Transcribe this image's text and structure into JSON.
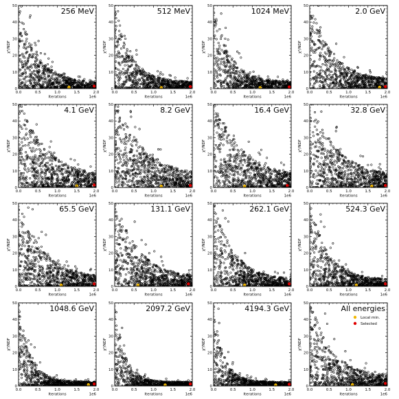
{
  "figure": {
    "xlabel": "Iterations",
    "ylabel": "χ²/NDF",
    "x_offset_label": "1e6",
    "legend": [
      "Local min.",
      "Selected"
    ]
  },
  "colors": {
    "points": "#000000",
    "local_min": "#f2b700",
    "selected": "#e00000",
    "axes": "#000000"
  },
  "chart_data": [
    {
      "type": "scatter",
      "title": "256 MeV",
      "xlim": [
        0,
        2.0
      ],
      "ylim": [
        0,
        50
      ],
      "xticks": [
        "0.0",
        "0.5",
        "1.0",
        "1.5",
        "2.0"
      ],
      "yticks": [
        "0",
        "10",
        "20",
        "30",
        "40",
        "50"
      ],
      "decay": 0.45,
      "floor": 4,
      "local_min": [
        1.3,
        0.8
      ],
      "selected": [
        1.95,
        1.5
      ]
    },
    {
      "type": "scatter",
      "title": "512 MeV",
      "xlim": [
        0,
        2.0
      ],
      "ylim": [
        0,
        50
      ],
      "xticks": [
        "0.0",
        "0.5",
        "1.0",
        "1.5",
        "2.0"
      ],
      "yticks": [
        "0",
        "10",
        "20",
        "30",
        "40",
        "50"
      ],
      "decay": 0.4,
      "floor": 4,
      "local_min": [
        1.2,
        0.6
      ],
      "selected": [
        1.95,
        1.2
      ]
    },
    {
      "type": "scatter",
      "title": "1024 MeV",
      "xlim": [
        0,
        2.0
      ],
      "ylim": [
        0,
        50
      ],
      "xticks": [
        "0.0",
        "0.5",
        "1.0",
        "1.5",
        "2.0"
      ],
      "yticks": [
        "0",
        "10",
        "20",
        "30",
        "40",
        "50"
      ],
      "decay": 0.4,
      "floor": 4,
      "local_min": [
        1.2,
        0.6
      ],
      "selected": [
        1.95,
        1.0
      ]
    },
    {
      "type": "scatter",
      "title": "2.0 GeV",
      "xlim": [
        0,
        2.0
      ],
      "ylim": [
        0,
        50
      ],
      "xticks": [
        "0.0",
        "0.5",
        "1.0",
        "1.5",
        "2.0"
      ],
      "yticks": [
        "0",
        "10",
        "20",
        "30",
        "40",
        "50"
      ],
      "decay": 0.55,
      "floor": 5,
      "local_min": [
        1.8,
        0.8
      ],
      "selected": [
        1.95,
        1.2
      ]
    },
    {
      "type": "scatter",
      "title": "4.1 GeV",
      "xlim": [
        0,
        2.0
      ],
      "ylim": [
        0,
        50
      ],
      "xticks": [
        "0.0",
        "0.5",
        "1.0",
        "1.5",
        "2.0"
      ],
      "yticks": [
        "0",
        "10",
        "20",
        "30",
        "40",
        "50"
      ],
      "decay": 0.7,
      "floor": 6,
      "local_min": [
        1.5,
        1.0
      ],
      "selected": [
        1.95,
        1.5
      ]
    },
    {
      "type": "scatter",
      "title": "8.2 GeV",
      "xlim": [
        0,
        2.0
      ],
      "ylim": [
        0,
        50
      ],
      "xticks": [
        "0.0",
        "0.5",
        "1.0",
        "1.5",
        "2.0"
      ],
      "yticks": [
        "0",
        "10",
        "20",
        "30",
        "40",
        "50"
      ],
      "decay": 0.75,
      "floor": 6,
      "local_min": [
        1.2,
        0.8
      ],
      "selected": [
        1.95,
        1.2
      ]
    },
    {
      "type": "scatter",
      "title": "16.4 GeV",
      "xlim": [
        0,
        2.0
      ],
      "ylim": [
        0,
        50
      ],
      "xticks": [
        "0.0",
        "0.5",
        "1.0",
        "1.5",
        "2.0"
      ],
      "yticks": [
        "0",
        "10",
        "20",
        "30",
        "40",
        "50"
      ],
      "decay": 0.7,
      "floor": 6,
      "local_min": [
        0.8,
        0.8
      ],
      "selected": [
        1.9,
        1.2
      ]
    },
    {
      "type": "scatter",
      "title": "32.8 GeV",
      "xlim": [
        0,
        2.0
      ],
      "ylim": [
        0,
        50
      ],
      "xticks": [
        "0.0",
        "0.5",
        "1.0",
        "1.5",
        "2.0"
      ],
      "yticks": [
        "0",
        "10",
        "20",
        "30",
        "40",
        "50"
      ],
      "decay": 0.7,
      "floor": 6,
      "local_min": [
        1.6,
        0.8
      ],
      "selected": [
        1.95,
        1.2
      ]
    },
    {
      "type": "scatter",
      "title": "65.5 GeV",
      "xlim": [
        0,
        2.0
      ],
      "ylim": [
        0,
        50
      ],
      "xticks": [
        "0.0",
        "0.5",
        "1.0",
        "1.5",
        "2.0"
      ],
      "yticks": [
        "0",
        "10",
        "20",
        "30",
        "40",
        "50"
      ],
      "decay": 0.6,
      "floor": 5,
      "local_min": [
        1.1,
        0.8
      ],
      "selected": [
        1.95,
        1.5
      ]
    },
    {
      "type": "scatter",
      "title": "131.1 GeV",
      "xlim": [
        0,
        2.0
      ],
      "ylim": [
        0,
        50
      ],
      "xticks": [
        "0.0",
        "0.5",
        "1.0",
        "1.5",
        "2.0"
      ],
      "yticks": [
        "0",
        "10",
        "20",
        "30",
        "40",
        "50"
      ],
      "decay": 0.6,
      "floor": 5,
      "local_min": [
        0.6,
        0.8
      ],
      "selected": [
        1.9,
        1.5
      ]
    },
    {
      "type": "scatter",
      "title": "262.1 GeV",
      "xlim": [
        0,
        2.0
      ],
      "ylim": [
        0,
        50
      ],
      "xticks": [
        "0.0",
        "0.5",
        "1.0",
        "1.5",
        "2.0"
      ],
      "yticks": [
        "0",
        "10",
        "20",
        "30",
        "40",
        "50"
      ],
      "decay": 0.5,
      "floor": 4,
      "local_min": [
        0.8,
        0.8
      ],
      "selected": [
        1.95,
        1.5
      ]
    },
    {
      "type": "scatter",
      "title": "524.3 GeV",
      "xlim": [
        0,
        2.0
      ],
      "ylim": [
        0,
        50
      ],
      "xticks": [
        "0.0",
        "0.5",
        "1.0",
        "1.5",
        "2.0"
      ],
      "yticks": [
        "0",
        "10",
        "20",
        "30",
        "40",
        "50"
      ],
      "decay": 0.45,
      "floor": 4,
      "local_min": [
        1.2,
        0.8
      ],
      "selected": [
        1.95,
        1.5
      ]
    },
    {
      "type": "scatter",
      "title": "1048.6 GeV",
      "xlim": [
        0,
        2.0
      ],
      "ylim": [
        0,
        50
      ],
      "xticks": [
        "0.0",
        "0.5",
        "1.0",
        "1.5",
        "2.0"
      ],
      "yticks": [
        "0",
        "10",
        "20",
        "30",
        "40",
        "50"
      ],
      "decay": 0.3,
      "floor": 2.5,
      "local_min": [
        1.8,
        0.8
      ],
      "selected": [
        1.95,
        1.2
      ]
    },
    {
      "type": "scatter",
      "title": "2097.2 GeV",
      "xlim": [
        0,
        2.0
      ],
      "ylim": [
        0,
        50
      ],
      "xticks": [
        "0.0",
        "0.5",
        "1.0",
        "1.5",
        "2.0"
      ],
      "yticks": [
        "0",
        "10",
        "20",
        "30",
        "40",
        "50"
      ],
      "decay": 0.25,
      "floor": 2.5,
      "local_min": [
        1.3,
        0.6
      ],
      "selected": [
        1.95,
        1.2
      ]
    },
    {
      "type": "scatter",
      "title": "4194.3 GeV",
      "xlim": [
        0,
        2.0
      ],
      "ylim": [
        0,
        50
      ],
      "xticks": [
        "0.0",
        "0.5",
        "1.0",
        "1.5",
        "2.0"
      ],
      "yticks": [
        "0",
        "10",
        "20",
        "30",
        "40",
        "50"
      ],
      "decay": 0.25,
      "floor": 2.5,
      "local_min": [
        1.6,
        0.6
      ],
      "selected": [
        1.95,
        1.0
      ]
    },
    {
      "type": "scatter",
      "title": "All energies",
      "xlim": [
        0,
        2.0
      ],
      "ylim": [
        0,
        50
      ],
      "xticks": [
        "0.0",
        "0.5",
        "1.0",
        "1.5",
        "2.0"
      ],
      "yticks": [
        "0",
        "10",
        "20",
        "30",
        "40",
        "50"
      ],
      "decay": 0.5,
      "floor": 6,
      "local_min": [
        1.1,
        0.8
      ],
      "selected": [
        1.95,
        1.5
      ],
      "legend": true
    }
  ]
}
